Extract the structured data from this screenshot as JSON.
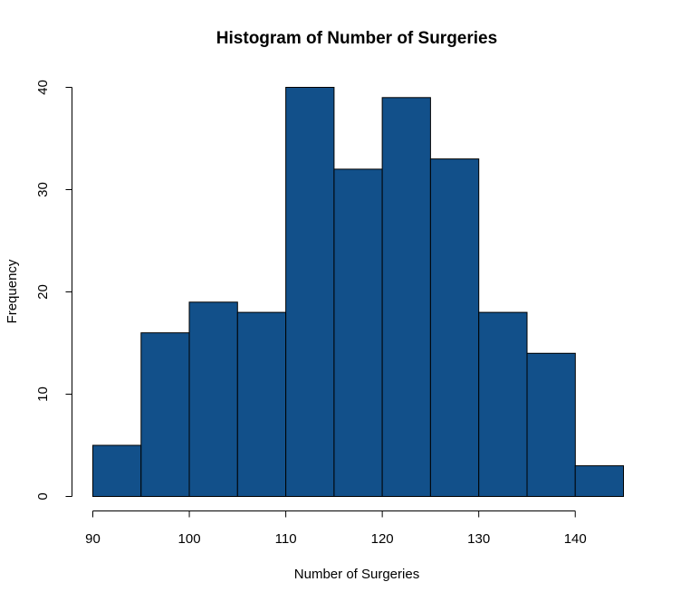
{
  "chart_data": {
    "type": "bar",
    "subtype": "histogram",
    "title": "Histogram of Number of Surgeries",
    "xlabel": "Number of Surgeries",
    "ylabel": "Frequency",
    "bin_edges": [
      90,
      95,
      100,
      105,
      110,
      115,
      120,
      125,
      130,
      135,
      140,
      145
    ],
    "values": [
      5,
      16,
      19,
      18,
      40,
      32,
      39,
      33,
      18,
      14,
      3
    ],
    "xlim": [
      90,
      145
    ],
    "ylim": [
      0,
      40
    ],
    "x_ticks": [
      "90",
      "100",
      "110",
      "120",
      "130",
      "140"
    ],
    "y_ticks": [
      "0",
      "10",
      "20",
      "30",
      "40"
    ],
    "bar_color": "#12508A",
    "grid": false,
    "legend": "none"
  }
}
